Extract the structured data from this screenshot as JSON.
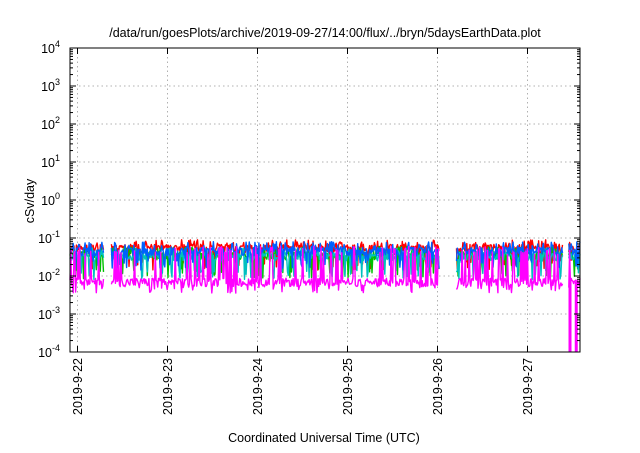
{
  "chart_data": {
    "type": "line",
    "title": "/data/run/goesPlots/archive/2019-09-27/14:00/flux/../bryn/5daysEarthData.plot",
    "xlabel": "Coordinated Universal Time (UTC)",
    "ylabel": "cSv/day",
    "yscale": "log",
    "ylim": [
      0.0001,
      10000
    ],
    "xlim": [
      "2019-09-21T22:00",
      "2019-09-27T14:00"
    ],
    "grid": true,
    "y_ticks": [
      {
        "base": "10",
        "exp": "-4"
      },
      {
        "base": "10",
        "exp": "-3"
      },
      {
        "base": "10",
        "exp": "-2"
      },
      {
        "base": "10",
        "exp": "-1"
      },
      {
        "base": "10",
        "exp": "0"
      },
      {
        "base": "10",
        "exp": "1"
      },
      {
        "base": "10",
        "exp": "2"
      },
      {
        "base": "10",
        "exp": "3"
      },
      {
        "base": "10",
        "exp": "4"
      }
    ],
    "x_ticks": [
      "2019-9-22",
      "2019-9-23",
      "2019-9-24",
      "2019-9-25",
      "2019-9-26",
      "2019-9-27"
    ],
    "data_gaps": [
      [
        "2019-09-22T07:00",
        "2019-09-22T09:00"
      ],
      [
        "2019-09-26T00:30",
        "2019-09-26T05:00"
      ],
      [
        "2019-09-27T09:30",
        "2019-09-27T11:00"
      ]
    ],
    "series": [
      {
        "color": "#ff0000",
        "level": 0.055,
        "spike": 0.09,
        "dip": 0.02
      },
      {
        "color": "#00c000",
        "level": 0.035,
        "spike": 0.06,
        "dip": 0.012
      },
      {
        "color": "#00c0c0",
        "level": 0.033,
        "spike": 0.055,
        "dip": 0.011
      },
      {
        "color": "#0060ff",
        "level": 0.045,
        "spike": 0.08,
        "dip": 0.02
      },
      {
        "color": "#ff00ff",
        "level": 0.007,
        "spike": 0.06,
        "dip": 0.005
      }
    ]
  }
}
